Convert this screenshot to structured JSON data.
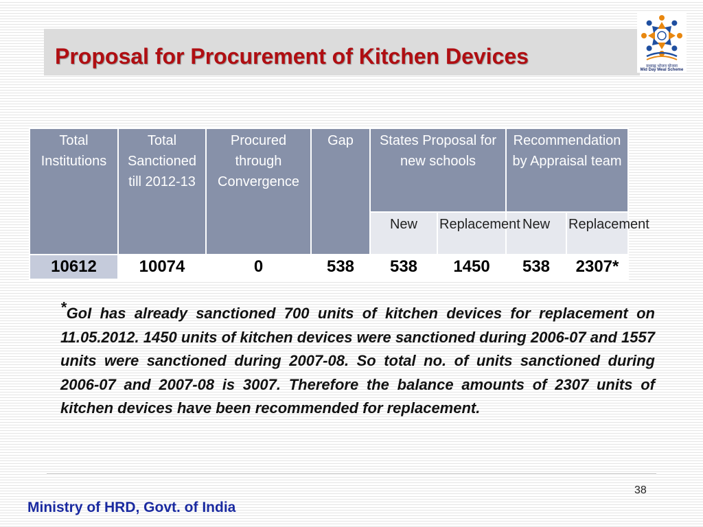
{
  "slide": {
    "title": "Proposal for Procurement of Kitchen Devices",
    "logo": {
      "icon": "mid-day-meal-logo",
      "text_hindi": "मध्याह्न भोजन योजना",
      "text_english": "Mid Day Meal Scheme"
    }
  },
  "table": {
    "headers": [
      "Total Institutions",
      "Total Sanctioned till 2012-13",
      "Procured through Convergence",
      "Gap",
      "States Proposal for new schools",
      "Recommendation by Appraisal team"
    ],
    "subheaders": [
      "New",
      "Replacement",
      "New",
      "Replacement"
    ],
    "row": [
      "10612",
      "10074",
      "0",
      "538",
      "538",
      "1450",
      "538",
      "2307*"
    ]
  },
  "note": {
    "marker": "*",
    "text": "GoI has already sanctioned 700 units of kitchen devices for replacement on 11.05.2012. 1450 units of kitchen devices were sanctioned during 2006-07 and 1557 units were sanctioned during 2007-08. So total no. of units sanctioned during 2006-07 and 2007-08 is 3007. Therefore the balance amounts of 2307 units of kitchen devices have been recommended for replacement."
  },
  "footer": {
    "page_number": "38",
    "organization": "Ministry of HRD, Govt. of India"
  },
  "colors": {
    "title": "#b00e12",
    "header_bg": "#8791a9",
    "subheader_bg": "#e6e8ee",
    "first_value_bg": "#c5cbdb",
    "footer": "#1a2aa0"
  }
}
